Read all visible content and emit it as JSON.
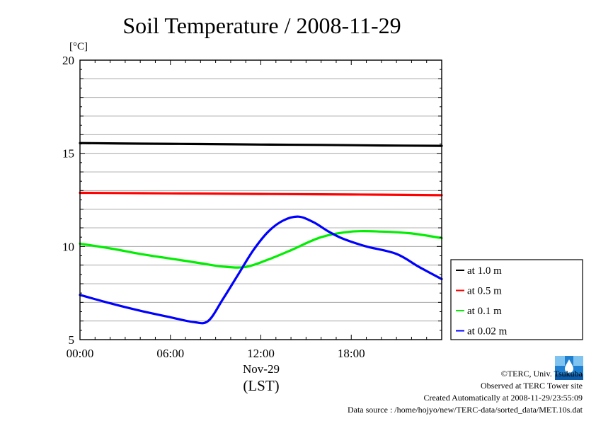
{
  "chart_data": {
    "type": "line",
    "title": "Soil Temperature / 2008-11-29",
    "ylabel": "[°C]",
    "xlabel": "(LST)",
    "date_label": "Nov-29",
    "xlim": [
      0,
      24
    ],
    "ylim": [
      5,
      20
    ],
    "x_ticks": [
      0,
      6,
      12,
      18
    ],
    "x_tick_labels": [
      "00:00",
      "06:00",
      "12:00",
      "18:00"
    ],
    "y_ticks": [
      5,
      10,
      15,
      20
    ],
    "y_tick_labels": [
      "5",
      "10",
      "15",
      "20"
    ],
    "grid": true,
    "legend_position": "right",
    "series": [
      {
        "name": "at 1.0 m",
        "color": "#000000",
        "x": [
          0,
          4,
          8,
          12,
          16,
          20,
          24
        ],
        "y": [
          15.55,
          15.52,
          15.5,
          15.47,
          15.45,
          15.42,
          15.4
        ]
      },
      {
        "name": "at 0.5 m",
        "color": "#ff0000",
        "x": [
          0,
          4,
          8,
          12,
          16,
          20,
          24
        ],
        "y": [
          12.88,
          12.86,
          12.84,
          12.82,
          12.8,
          12.78,
          12.75
        ]
      },
      {
        "name": "at 0.1 m",
        "color": "#00ee00",
        "x": [
          0,
          2,
          4,
          6,
          8,
          9.5,
          11,
          12.5,
          14,
          16,
          18,
          20,
          22,
          24
        ],
        "y": [
          10.15,
          9.9,
          9.6,
          9.35,
          9.1,
          8.92,
          8.9,
          9.3,
          9.8,
          10.5,
          10.8,
          10.8,
          10.7,
          10.45
        ]
      },
      {
        "name": "at 0.02 m",
        "color": "#0000ff",
        "x": [
          0,
          2,
          4,
          6,
          7.5,
          8.5,
          9.5,
          10.5,
          11.5,
          12.5,
          13.5,
          14.5,
          15.5,
          16.5,
          17.5,
          19,
          21,
          22.5,
          24
        ],
        "y": [
          7.4,
          6.95,
          6.55,
          6.2,
          5.95,
          6.0,
          7.2,
          8.5,
          9.8,
          10.8,
          11.4,
          11.6,
          11.3,
          10.8,
          10.4,
          10.0,
          9.6,
          8.9,
          8.25
        ]
      }
    ]
  },
  "credits": {
    "copyright": "©TERC, Univ. Tsukuba",
    "observed": "Observed at TERC Tower site",
    "created": "Created Automatically at 2008-11-29/23:55:09",
    "source": "Data source : /home/hojyo/new/TERC-data/sorted_data/MET.10s.dat",
    "logo_text": "TERC"
  }
}
